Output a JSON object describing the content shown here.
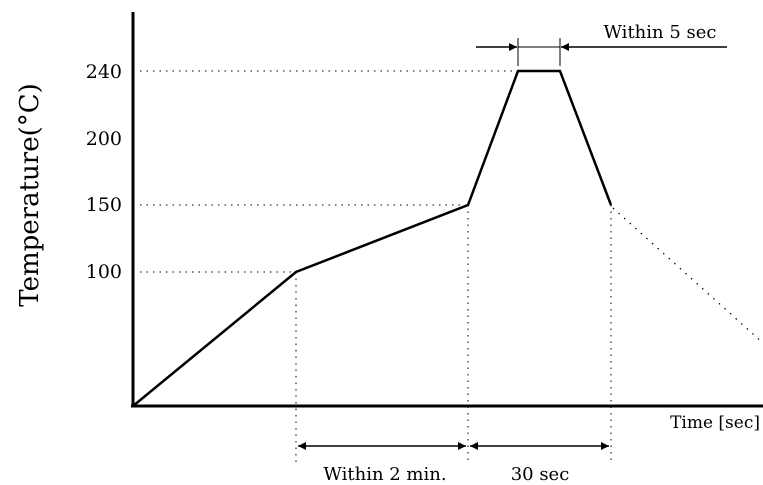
{
  "chart_data": {
    "type": "line",
    "title": "",
    "xlabel": "Time [sec]",
    "ylabel": "Temperature(°C)",
    "y_ticks": [
      "100",
      "150",
      "200",
      "240"
    ],
    "ylim": [
      0,
      260
    ],
    "grid": false,
    "series": [
      {
        "points": [
          {
            "x": 0,
            "y": 0
          },
          {
            "x": 120,
            "y": 100
          },
          {
            "x": 250,
            "y": 150
          },
          {
            "x": 287,
            "y": 240
          },
          {
            "x": 317,
            "y": 240
          },
          {
            "x": 357,
            "y": 150
          }
        ],
        "cooling_dotted_to": {
          "x": 470,
          "y": 50
        }
      }
    ],
    "reference_lines": [
      100,
      150,
      240
    ],
    "annotations": {
      "preheat_duration": "Within 2 min.",
      "above_150_duration": "30 sec",
      "peak_duration": "Within 5 sec"
    }
  }
}
